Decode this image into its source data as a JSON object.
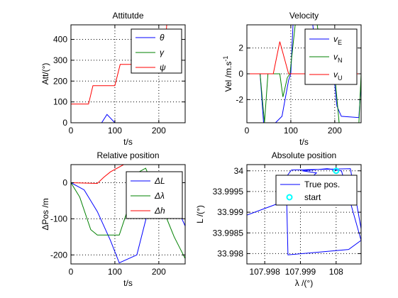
{
  "colors": {
    "blue": "#0000ff",
    "green": "#008000",
    "red": "#ff0000",
    "cyan": "#00ffff"
  },
  "chart_data": [
    {
      "type": "line",
      "title": "Attitutde",
      "xlabel": "t/s",
      "ylabel": "Att/(°)",
      "xlim": [
        0,
        260
      ],
      "ylim": [
        0,
        470
      ],
      "xticks": [
        0,
        100,
        200
      ],
      "yticks": [
        0,
        100,
        200,
        300,
        400
      ],
      "grid": true,
      "legend": "top-right",
      "series": [
        {
          "name": "θ",
          "color": "blue",
          "points": [
            [
              0,
              0
            ],
            [
              70,
              0
            ],
            [
              82,
              40
            ],
            [
              100,
              0
            ],
            [
              260,
              0
            ]
          ]
        },
        {
          "name": "γ",
          "color": "green",
          "points": [
            [
              0,
              0
            ],
            [
              260,
              0
            ]
          ]
        },
        {
          "name": "ψ",
          "color": "red",
          "points": [
            [
              0,
              90
            ],
            [
              40,
              90
            ],
            [
              50,
              178
            ],
            [
              100,
              178
            ],
            [
              112,
              280
            ],
            [
              160,
              280
            ],
            [
              168,
              375
            ],
            [
              215,
              375
            ],
            [
              218,
              470
            ]
          ]
        }
      ]
    },
    {
      "type": "line",
      "title": "Velocity",
      "xlabel": "t/s",
      "ylabel": "Vel /m.s-1",
      "ylabel_main": "Vel /m.s",
      "ylabel_sup": "-1",
      "xlim": [
        0,
        260
      ],
      "ylim": [
        -3.8,
        3.8
      ],
      "xticks": [
        0,
        100,
        200
      ],
      "yticks": [
        -2,
        0,
        2
      ],
      "grid": true,
      "legend": "top-right",
      "series": [
        {
          "name": "vE",
          "name_main": "v",
          "name_sub": "E",
          "color": "blue",
          "points": [
            [
              0,
              0
            ],
            [
              30,
              0
            ],
            [
              38,
              -3.8
            ],
            [
              65,
              -3.8
            ],
            [
              80,
              -3.3
            ],
            [
              95,
              -0.5
            ],
            [
              100,
              0
            ],
            [
              105,
              3.8
            ],
            [
              150,
              3.8
            ],
            [
              165,
              -0.8
            ],
            [
              200,
              -0.8
            ],
            [
              205,
              -2.5
            ],
            [
              215,
              -3.3
            ],
            [
              255,
              -3.4
            ],
            [
              260,
              -0.5
            ]
          ]
        },
        {
          "name": "vN",
          "name_main": "v",
          "name_sub": "N",
          "color": "green",
          "points": [
            [
              0,
              0
            ],
            [
              30,
              0
            ],
            [
              40,
              -3.8
            ],
            [
              48,
              0
            ],
            [
              75,
              0
            ],
            [
              82,
              -1.8
            ],
            [
              92,
              -0.3
            ],
            [
              98,
              0
            ],
            [
              110,
              3.8
            ],
            [
              160,
              3.8
            ],
            [
              170,
              1.5
            ],
            [
              180,
              0
            ],
            [
              200,
              0
            ],
            [
              210,
              -3.8
            ],
            [
              255,
              -3.8
            ],
            [
              260,
              0
            ]
          ]
        },
        {
          "name": "vU",
          "name_main": "v",
          "name_sub": "U",
          "color": "red",
          "points": [
            [
              0,
              0
            ],
            [
              60,
              0
            ],
            [
              75,
              2.5
            ],
            [
              95,
              0
            ],
            [
              260,
              0
            ]
          ]
        }
      ]
    },
    {
      "type": "line",
      "title": "Relative position",
      "xlabel": "t/s",
      "ylabel": "ΔPos /m",
      "xlim": [
        0,
        260
      ],
      "ylim": [
        -225,
        50
      ],
      "xticks": [
        0,
        100,
        200
      ],
      "yticks": [
        -200,
        -100,
        0
      ],
      "grid": true,
      "legend": "top-right",
      "series": [
        {
          "name": "ΔL",
          "color": "blue",
          "points": [
            [
              0,
              0
            ],
            [
              30,
              -20
            ],
            [
              60,
              -80
            ],
            [
              90,
              -160
            ],
            [
              110,
              -222
            ],
            [
              150,
              -200
            ],
            [
              175,
              -80
            ],
            [
              205,
              -10
            ],
            [
              230,
              -40
            ],
            [
              260,
              -120
            ]
          ]
        },
        {
          "name": "Δλ",
          "color": "green",
          "points": [
            [
              0,
              0
            ],
            [
              20,
              -40
            ],
            [
              45,
              -130
            ],
            [
              60,
              -145
            ],
            [
              110,
              -145
            ],
            [
              125,
              -90
            ],
            [
              155,
              30
            ],
            [
              170,
              40
            ],
            [
              205,
              -60
            ],
            [
              235,
              -150
            ],
            [
              260,
              -210
            ]
          ]
        },
        {
          "name": "Δh",
          "color": "red",
          "points": [
            [
              0,
              0
            ],
            [
              60,
              -2
            ],
            [
              75,
              15
            ],
            [
              90,
              30
            ],
            [
              120,
              50
            ]
          ]
        }
      ]
    },
    {
      "type": "line",
      "title": "Absolute position",
      "xlabel": "λ /(°)",
      "ylabel": "L /(°)",
      "xlim": [
        107.9975,
        108.0007
      ],
      "ylim": [
        33.99775,
        34.00015
      ],
      "xticks": [
        107.998,
        107.999,
        108
      ],
      "xtick_labels": [
        "107.998",
        "107.999",
        "108"
      ],
      "yticks": [
        33.998,
        33.9985,
        33.999,
        33.9995,
        34
      ],
      "ytick_labels": [
        "33.998",
        "33.9985",
        "33.999",
        "33.9995",
        "34"
      ],
      "grid": true,
      "legend": "top-right",
      "series": [
        {
          "name": "True pos.",
          "color": "blue",
          "points": [
            [
              107.9975,
              33.99893
            ],
            [
              107.9985,
              33.99925
            ],
            [
              107.99945,
              33.99995
            ],
            [
              107.99905,
              34.0
            ],
            [
              107.99975,
              34.00005
            ],
            [
              108.00015,
              34.0
            ],
            [
              108.0007,
              33.99832
            ],
            [
              108.00035,
              33.9981
            ],
            [
              107.99865,
              33.99797
            ],
            [
              107.9986,
              33.99985
            ],
            [
              107.99875,
              34.00002
            ],
            [
              108.0004,
              34.00005
            ],
            [
              108.0007,
              33.9986
            ]
          ]
        },
        {
          "name": "start",
          "color": "cyan",
          "marker": "circle",
          "points": [
            [
              108.0,
              34.0
            ]
          ]
        }
      ]
    }
  ]
}
